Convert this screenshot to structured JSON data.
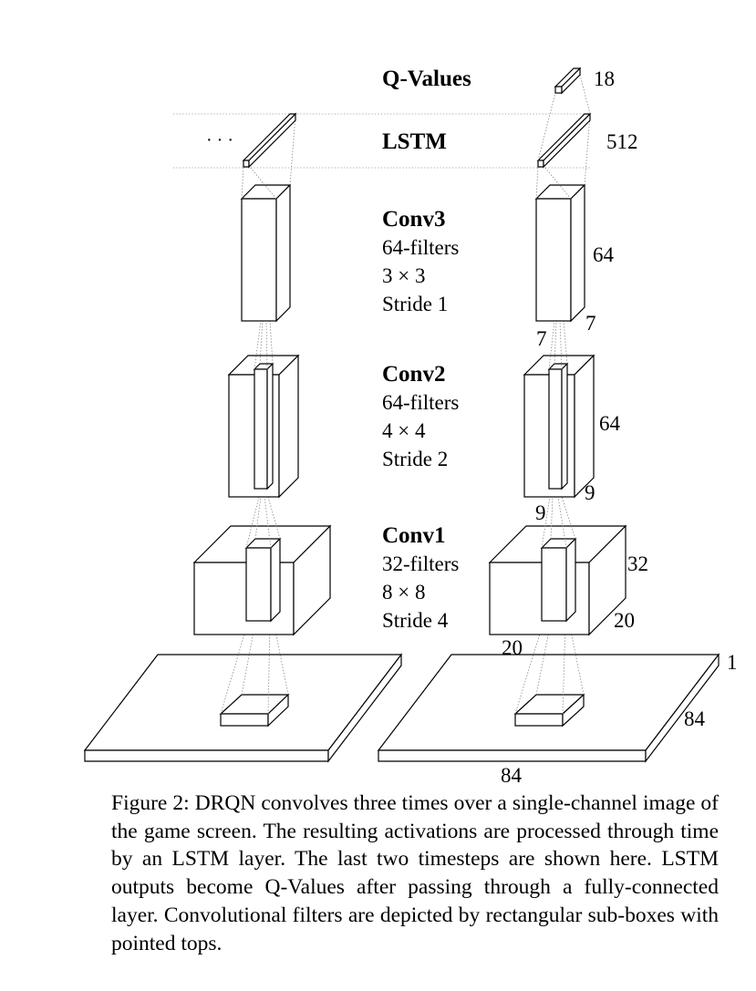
{
  "layers": {
    "qvalues": {
      "name": "Q-Values",
      "size": "18"
    },
    "lstm": {
      "name": "LSTM",
      "size": "512",
      "ellipsis": "· · ·"
    },
    "conv3": {
      "name": "Conv3",
      "filters": "64-filters",
      "kernel": "3 × 3",
      "stride": "Stride 1",
      "depth": "64",
      "width": "7",
      "height": "7"
    },
    "conv2": {
      "name": "Conv2",
      "filters": "64-filters",
      "kernel": "4 × 4",
      "stride": "Stride 2",
      "depth": "64",
      "width": "9",
      "height": "9"
    },
    "conv1": {
      "name": "Conv1",
      "filters": "32-filters",
      "kernel": "8 × 8",
      "stride": "Stride 4",
      "depth": "32",
      "width": "20",
      "height": "20"
    },
    "input": {
      "channels": "1",
      "width": "84",
      "height": "84"
    }
  },
  "caption": "Figure 2: DRQN convolves three times over a single-channel image of the game screen. The resulting activations are processed through time by an LSTM layer. The last two timesteps are shown here. LSTM outputs become Q-Values after passing through a fully-connected layer. Convolutional filters are depicted by rectangular sub-boxes with pointed tops."
}
